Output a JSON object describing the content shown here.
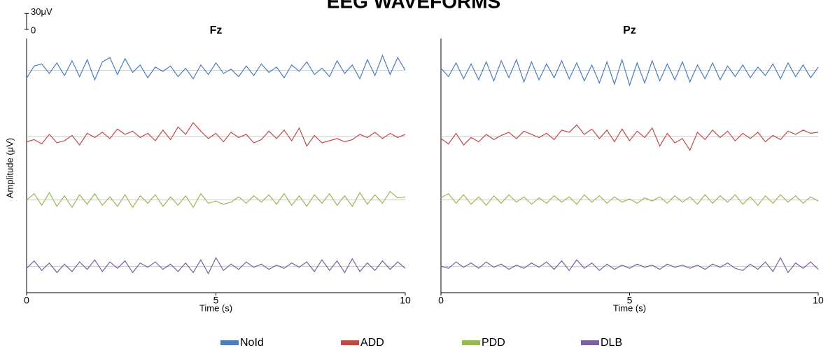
{
  "title": "EEG WAVEFORMS",
  "scale_bar": {
    "ticks": [
      0,
      {
        "value": 30,
        "label": "30μV"
      }
    ]
  },
  "chart_data": [
    {
      "type": "line",
      "title": "Fz",
      "ylabel": "Amplitude (μV)",
      "xlabel": "Time (s)",
      "xlim": [
        0,
        10
      ],
      "xticks": [
        0,
        5,
        10
      ],
      "ylim": [
        -420,
        60
      ],
      "x": [
        0,
        0.2,
        0.4,
        0.6,
        0.8,
        1,
        1.2,
        1.4,
        1.6,
        1.8,
        2,
        2.2,
        2.4,
        2.6,
        2.8,
        3,
        3.2,
        3.4,
        3.6,
        3.8,
        4,
        4.2,
        4.4,
        4.6,
        4.8,
        5,
        5.2,
        5.4,
        5.6,
        5.8,
        6,
        6.2,
        6.4,
        6.6,
        6.8,
        7,
        7.2,
        7.4,
        7.6,
        7.8,
        8,
        8.2,
        8.4,
        8.6,
        8.8,
        9,
        9.2,
        9.4,
        9.6,
        9.8,
        10
      ],
      "series": [
        {
          "name": "NoId",
          "color": "#4a7ebb",
          "baseline": 0,
          "values": [
            -15,
            8,
            12,
            -6,
            14,
            -10,
            18,
            -12,
            20,
            -18,
            16,
            24,
            -8,
            22,
            -4,
            10,
            -14,
            6,
            -2,
            8,
            -12,
            4,
            -16,
            10,
            -8,
            14,
            -6,
            2,
            -12,
            8,
            -10,
            12,
            -4,
            6,
            -14,
            10,
            -2,
            16,
            -8,
            4,
            -12,
            18,
            -6,
            10,
            -16,
            20,
            -10,
            28,
            -8,
            24,
            0
          ]
        },
        {
          "name": "ADD",
          "color": "#be4b48",
          "baseline": -125,
          "values": [
            -10,
            -6,
            -14,
            4,
            -12,
            -8,
            2,
            -16,
            6,
            -2,
            8,
            -4,
            14,
            4,
            10,
            -2,
            6,
            -8,
            12,
            -6,
            18,
            4,
            26,
            10,
            -4,
            6,
            -10,
            8,
            -2,
            4,
            -12,
            -6,
            10,
            -4,
            12,
            -8,
            16,
            -18,
            2,
            -12,
            -8,
            -4,
            -10,
            -6,
            4,
            -2,
            8,
            -4,
            6,
            -2,
            4
          ]
        },
        {
          "name": "PDD",
          "color": "#98b954",
          "baseline": -245,
          "values": [
            0,
            12,
            -10,
            14,
            -12,
            8,
            -14,
            10,
            -8,
            12,
            -10,
            6,
            -12,
            10,
            -14,
            8,
            -6,
            10,
            -12,
            6,
            -10,
            8,
            -14,
            12,
            -6,
            -2,
            -8,
            -4,
            6,
            -6,
            8,
            -4,
            10,
            -8,
            12,
            -10,
            8,
            -12,
            10,
            -6,
            12,
            -10,
            8,
            -12,
            14,
            -8,
            10,
            -6,
            16,
            4,
            6
          ]
        },
        {
          "name": "DLB",
          "color": "#7d60a0",
          "baseline": -370,
          "values": [
            -4,
            10,
            -8,
            6,
            -12,
            4,
            -10,
            8,
            -6,
            12,
            -10,
            8,
            -4,
            10,
            -12,
            6,
            -2,
            8,
            -6,
            4,
            -10,
            6,
            -12,
            12,
            -14,
            16,
            -8,
            4,
            -6,
            8,
            -2,
            4,
            -6,
            2,
            -4,
            6,
            -2,
            8,
            -10,
            12,
            -8,
            10,
            -12,
            14,
            -10,
            6,
            -8,
            10,
            -6,
            8,
            -4
          ]
        }
      ]
    },
    {
      "type": "line",
      "title": "Pz",
      "xlabel": "Time (s)",
      "xlim": [
        0,
        10
      ],
      "xticks": [
        0,
        5,
        10
      ],
      "ylim": [
        -420,
        60
      ],
      "x": [
        0,
        0.2,
        0.4,
        0.6,
        0.8,
        1,
        1.2,
        1.4,
        1.6,
        1.8,
        2,
        2.2,
        2.4,
        2.6,
        2.8,
        3,
        3.2,
        3.4,
        3.6,
        3.8,
        4,
        4.2,
        4.4,
        4.6,
        4.8,
        5,
        5.2,
        5.4,
        5.6,
        5.8,
        6,
        6.2,
        6.4,
        6.6,
        6.8,
        7,
        7.2,
        7.4,
        7.6,
        7.8,
        8,
        8.2,
        8.4,
        8.6,
        8.8,
        9,
        9.2,
        9.4,
        9.6,
        9.8,
        10
      ],
      "series": [
        {
          "name": "NoId",
          "color": "#4a7ebb",
          "baseline": 0,
          "values": [
            4,
            -12,
            14,
            -16,
            12,
            -18,
            16,
            -20,
            18,
            -14,
            20,
            -22,
            16,
            -18,
            12,
            -14,
            18,
            -16,
            14,
            -20,
            10,
            -24,
            16,
            -26,
            20,
            -28,
            14,
            -24,
            18,
            -20,
            12,
            -18,
            16,
            -22,
            10,
            -16,
            14,
            -18,
            8,
            -12,
            10,
            -14,
            6,
            -10,
            12,
            -16,
            14,
            -12,
            10,
            -14,
            6
          ]
        },
        {
          "name": "ADD",
          "color": "#be4b48",
          "baseline": -125,
          "values": [
            -4,
            -14,
            6,
            -16,
            -2,
            -10,
            4,
            -6,
            2,
            8,
            -4,
            10,
            4,
            -2,
            6,
            -6,
            12,
            8,
            22,
            4,
            14,
            -4,
            12,
            -10,
            14,
            -8,
            10,
            -2,
            16,
            -18,
            6,
            -12,
            -4,
            -26,
            8,
            -6,
            12,
            -2,
            10,
            -8,
            6,
            -4,
            8,
            -10,
            2,
            -6,
            10,
            4,
            12,
            6,
            8
          ]
        },
        {
          "name": "PDD",
          "color": "#98b954",
          "baseline": -245,
          "values": [
            4,
            12,
            -6,
            10,
            -8,
            6,
            -10,
            8,
            -6,
            10,
            -4,
            6,
            -8,
            4,
            -6,
            8,
            -4,
            6,
            -8,
            10,
            -4,
            8,
            -6,
            6,
            -4,
            2,
            -6,
            4,
            -2,
            6,
            -6,
            8,
            -4,
            6,
            -8,
            10,
            -6,
            8,
            -4,
            10,
            -8,
            6,
            -10,
            8,
            -6,
            10,
            -4,
            8,
            -6,
            6,
            -2
          ]
        },
        {
          "name": "DLB",
          "color": "#7d60a0",
          "baseline": -370,
          "values": [
            0,
            -4,
            8,
            -2,
            6,
            -4,
            8,
            -2,
            4,
            -6,
            2,
            -4,
            6,
            -2,
            8,
            -6,
            10,
            -8,
            12,
            -4,
            6,
            -8,
            4,
            -6,
            2,
            -4,
            4,
            -2,
            2,
            -6,
            4,
            -2,
            2,
            -4,
            2,
            -6,
            4,
            -2,
            6,
            -4,
            -8,
            4,
            -6,
            8,
            -10,
            16,
            -12,
            6,
            -4,
            8,
            -6
          ]
        }
      ]
    }
  ]
}
